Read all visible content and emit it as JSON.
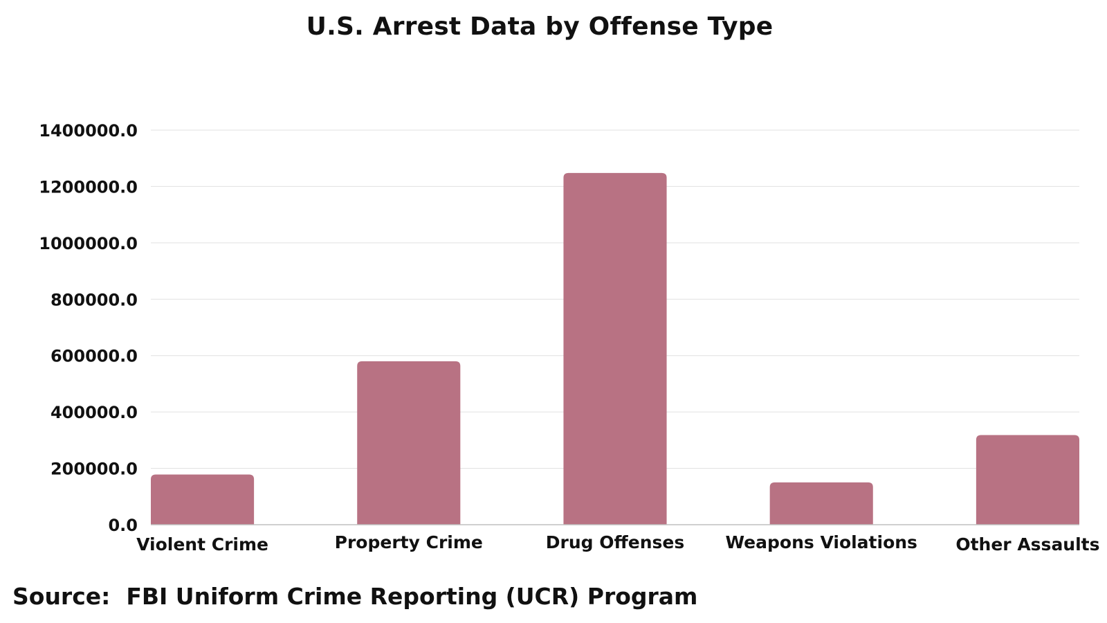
{
  "chart_data": {
    "type": "bar",
    "title": "U.S. Arrest Data by Offense Type",
    "xlabel": "",
    "ylabel": "",
    "categories": [
      "Violent Crime",
      "Property Crime",
      "Drug Offenses",
      "Weapons Violations",
      "Other Assaults"
    ],
    "values": [
      178000,
      580000,
      1248000,
      150000,
      318000
    ],
    "ylim": [
      0,
      1400000
    ],
    "yticks": [
      0,
      200000,
      400000,
      600000,
      800000,
      1000000,
      1200000,
      1400000
    ],
    "ytick_labels": [
      "0.0",
      "200000.0",
      "400000.0",
      "600000.0",
      "800000.0",
      "1000000.0",
      "1200000.0",
      "1400000.0"
    ],
    "grid": true,
    "legend": "none",
    "bar_color": "#b87283",
    "grid_color": "#e0e0e0",
    "axis_color": "#bfbfbf"
  },
  "source": "Source:  FBI Uniform Crime Reporting (UCR) Program"
}
